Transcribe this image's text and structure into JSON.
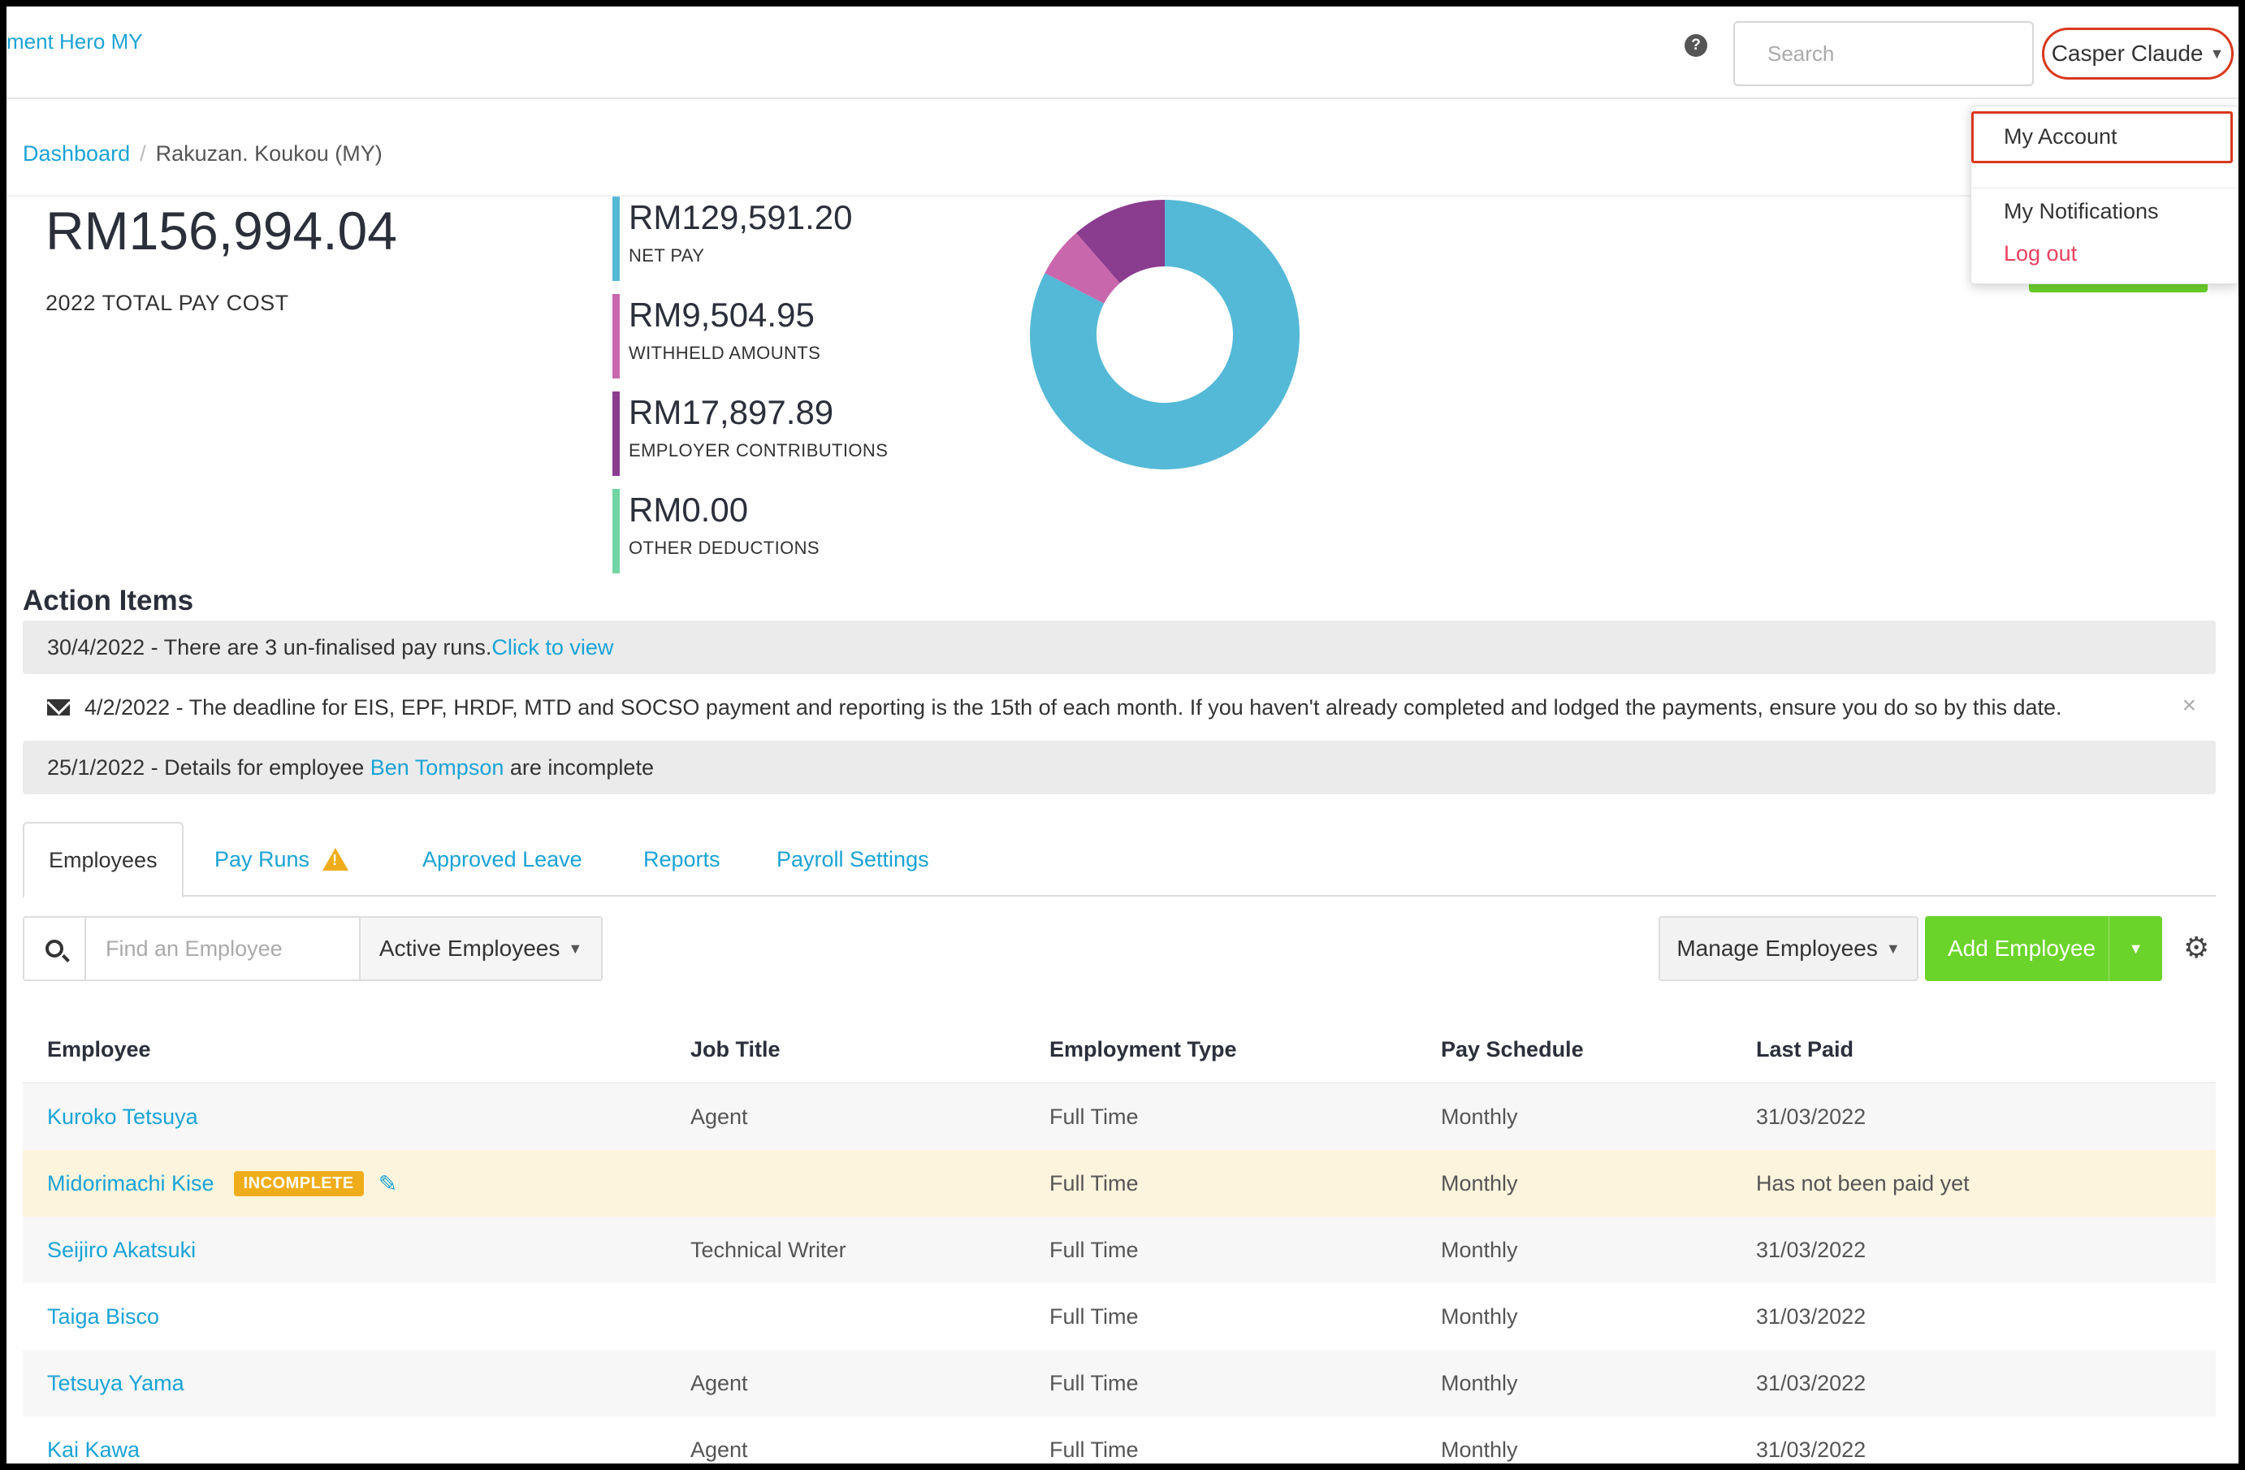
{
  "header": {
    "brand": "ment Hero MY",
    "search_placeholder": "Search",
    "user_name": "Casper Claude"
  },
  "user_dropdown": {
    "items": [
      "My Account",
      "My Notifications",
      "Log out"
    ]
  },
  "breadcrumb": {
    "root": "Dashboard",
    "separator": "/",
    "current": "Rakuzan. Koukou (MY)"
  },
  "summary": {
    "total_value": "RM156,994.04",
    "total_label": "2022 TOTAL PAY COST",
    "stats": [
      {
        "value": "RM129,591.20",
        "label": "NET PAY",
        "amount": 129591.2,
        "color": "#54b9d6"
      },
      {
        "value": "RM9,504.95",
        "label": "WITHHELD AMOUNTS",
        "amount": 9504.95,
        "color": "#c967ad"
      },
      {
        "value": "RM17,897.89",
        "label": "EMPLOYER CONTRIBUTIONS",
        "amount": 17897.89,
        "color": "#8a3c8f"
      },
      {
        "value": "RM0.00",
        "label": "OTHER DEDUCTIONS",
        "amount": 0,
        "color": "#6fd5a2"
      }
    ]
  },
  "actions": {
    "title": "Action Items",
    "item1_text": "30/4/2022 - There are 3 un-finalised pay runs.",
    "item1_link": "Click to view",
    "item2_text": "4/2/2022 - The deadline for EIS, EPF, HRDF, MTD and SOCSO payment and reporting is the 15th of each month. If you haven't already completed and lodged the payments, ensure you do so by this date.",
    "item2_close": "×",
    "item3_prefix": "25/1/2022 - Details for employee ",
    "item3_link": "Ben Tompson",
    "item3_suffix": " are incomplete"
  },
  "tabs": [
    "Employees",
    "Pay Runs",
    "Approved Leave",
    "Reports",
    "Payroll Settings"
  ],
  "toolbar": {
    "find_placeholder": "Find an Employee",
    "filter": "Active Employees",
    "manage": "Manage Employees",
    "add": "Add Employee"
  },
  "table": {
    "headers": [
      "Employee",
      "Job Title",
      "Employment Type",
      "Pay Schedule",
      "Last Paid"
    ],
    "badge": "INCOMPLETE",
    "rows": [
      {
        "name": "Kuroko Tetsuya",
        "job": "Agent",
        "type": "Full Time",
        "schedule": "Monthly",
        "last_paid": "31/03/2022"
      },
      {
        "name": "Midorimachi Kise",
        "job": "",
        "type": "Full Time",
        "schedule": "Monthly",
        "last_paid": "Has not been paid yet"
      },
      {
        "name": "Seijiro Akatsuki",
        "job": "Technical Writer",
        "type": "Full Time",
        "schedule": "Monthly",
        "last_paid": "31/03/2022"
      },
      {
        "name": "Taiga Bisco",
        "job": "",
        "type": "Full Time",
        "schedule": "Monthly",
        "last_paid": "31/03/2022"
      },
      {
        "name": "Tetsuya Yama",
        "job": "Agent",
        "type": "Full Time",
        "schedule": "Monthly",
        "last_paid": "31/03/2022"
      },
      {
        "name": "Kai Kawa",
        "job": "Agent",
        "type": "Full Time",
        "schedule": "Monthly",
        "last_paid": "31/03/2022"
      }
    ]
  }
}
